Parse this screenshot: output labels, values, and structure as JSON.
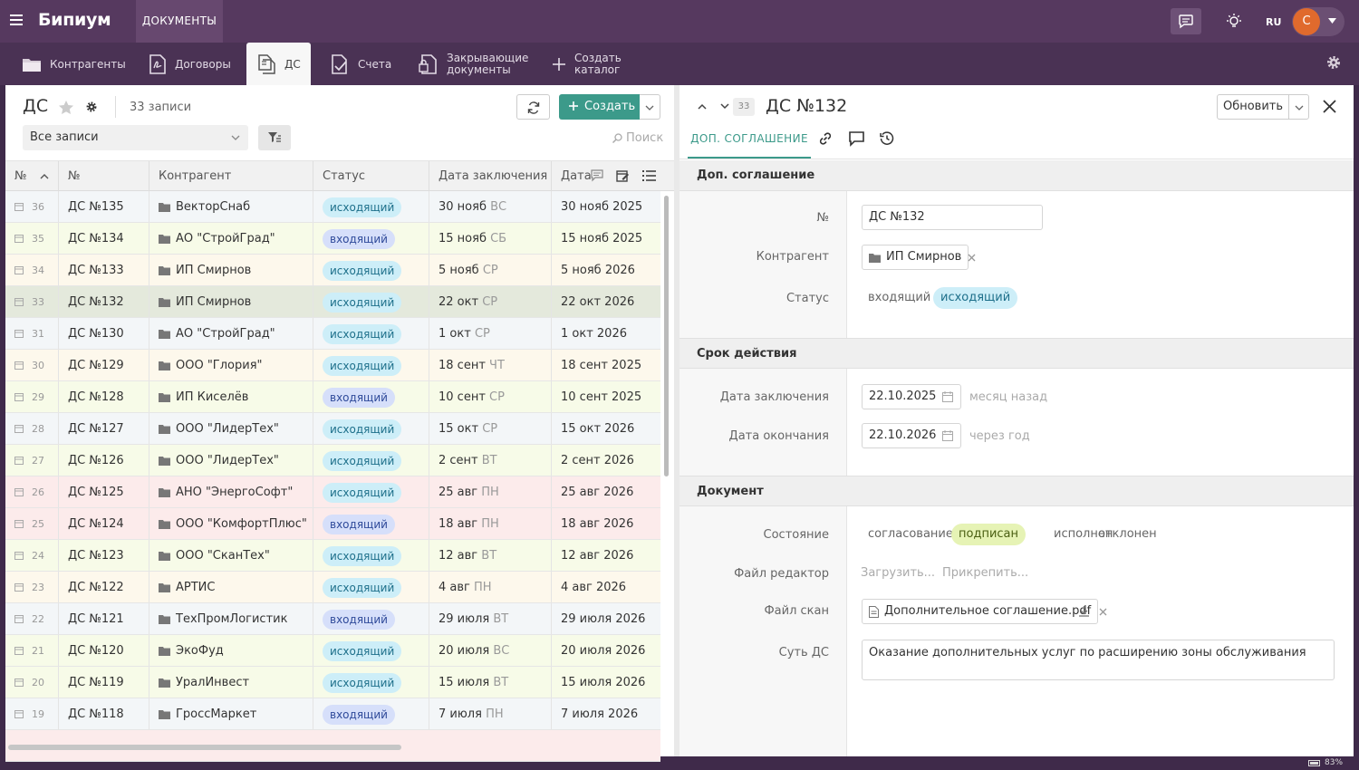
{
  "app": {
    "brand": "Бипиум",
    "top_tab": "ДОКУМЕНТЫ",
    "lang": "RU",
    "avatar_letter": "С"
  },
  "nav": {
    "items": [
      {
        "label": "Контрагенты",
        "icon": "folder-icon"
      },
      {
        "label": "Договоры",
        "icon": "contract-icon"
      },
      {
        "label": "ДС",
        "icon": "documents-icon",
        "active": true
      },
      {
        "label": "Счета",
        "icon": "invoice-check-icon"
      },
      {
        "label": "Закрывающие документы",
        "line1": "Закрывающие",
        "line2": "документы",
        "icon": "lock-document-icon"
      },
      {
        "label": "Создать каталог",
        "line1": "Создать",
        "line2": "каталог",
        "icon": "plus-icon"
      }
    ]
  },
  "list": {
    "title": "ДС",
    "count": "33 записи",
    "create_label": "Создать",
    "filter_value": "Все записи",
    "search_placeholder": "Поиск",
    "columns": [
      "№",
      "№",
      "Контрагент",
      "Статус",
      "Дата заключения",
      "Дата"
    ],
    "rows": [
      {
        "id": "36",
        "num": "ДС №135",
        "party": "ВекторСнаб",
        "status": "исходящий",
        "kind": "out",
        "date": "30 нояб",
        "dow": "ВС",
        "date2": "30 нояб 2025",
        "bg": "#f3f6f8"
      },
      {
        "id": "35",
        "num": "ДС №134",
        "party": "АО \"СтройГрад\"",
        "status": "входящий",
        "kind": "in",
        "date": "15 нояб",
        "dow": "СБ",
        "date2": "15 нояб 2025",
        "bg": "#f7fbe8"
      },
      {
        "id": "34",
        "num": "ДС №133",
        "party": "ИП Смирнов",
        "status": "исходящий",
        "kind": "out",
        "date": "5 нояб",
        "dow": "СР",
        "date2": "5 нояб 2026",
        "bg": "#fdf8ec"
      },
      {
        "id": "33",
        "num": "ДС №132",
        "party": "ИП Смирнов",
        "status": "исходящий",
        "kind": "out",
        "date": "22 окт",
        "dow": "СР",
        "date2": "22 окт 2026",
        "bg": "#e4e9dc"
      },
      {
        "id": "31",
        "num": "ДС №130",
        "party": "АО \"СтройГрад\"",
        "status": "исходящий",
        "kind": "out",
        "date": "1 окт",
        "dow": "СР",
        "date2": "1 окт 2026",
        "bg": "#f3f6f8"
      },
      {
        "id": "30",
        "num": "ДС №129",
        "party": "ООО \"Глория\"",
        "status": "исходящий",
        "kind": "out",
        "date": "18 сент",
        "dow": "ЧТ",
        "date2": "18 сент 2025",
        "bg": "#fdf8ec"
      },
      {
        "id": "29",
        "num": "ДС №128",
        "party": "ИП Киселёв",
        "status": "входящий",
        "kind": "in",
        "date": "10 сент",
        "dow": "СР",
        "date2": "10 сент 2025",
        "bg": "#f7fbe8"
      },
      {
        "id": "28",
        "num": "ДС №127",
        "party": "ООО \"ЛидерТех\"",
        "status": "исходящий",
        "kind": "out",
        "date": "15 окт",
        "dow": "СР",
        "date2": "15 окт 2026",
        "bg": "#f3f6f8"
      },
      {
        "id": "27",
        "num": "ДС №126",
        "party": "ООО \"ЛидерТех\"",
        "status": "исходящий",
        "kind": "out",
        "date": "2 сент",
        "dow": "ВТ",
        "date2": "2 сент 2026",
        "bg": "#f7fbe8"
      },
      {
        "id": "26",
        "num": "ДС №125",
        "party": "АНО \"ЭнергоСофт\"",
        "status": "исходящий",
        "kind": "out",
        "date": "25 авг",
        "dow": "ПН",
        "date2": "25 авг 2026",
        "bg": "#fcebeb"
      },
      {
        "id": "25",
        "num": "ДС №124",
        "party": "ООО \"КомфортПлюс\"",
        "status": "входящий",
        "kind": "in",
        "date": "18 авг",
        "dow": "ПН",
        "date2": "18 авг 2026",
        "bg": "#fcebeb"
      },
      {
        "id": "24",
        "num": "ДС №123",
        "party": "ООО \"СканТех\"",
        "status": "исходящий",
        "kind": "out",
        "date": "12 авг",
        "dow": "ВТ",
        "date2": "12 авг 2026",
        "bg": "#f7fbe8"
      },
      {
        "id": "23",
        "num": "ДС №122",
        "party": "АРТИС",
        "status": "исходящий",
        "kind": "out",
        "date": "4 авг",
        "dow": "ПН",
        "date2": "4 авг 2026",
        "bg": "#fdf8ec"
      },
      {
        "id": "22",
        "num": "ДС №121",
        "party": "ТехПромЛогистик",
        "status": "входящий",
        "kind": "in",
        "date": "29 июля",
        "dow": "ВТ",
        "date2": "29 июля 2026",
        "bg": "#f3f6f8"
      },
      {
        "id": "21",
        "num": "ДС №120",
        "party": "ЭкоФуд",
        "status": "исходящий",
        "kind": "out",
        "date": "20 июля",
        "dow": "ВС",
        "date2": "20 июля 2026",
        "bg": "#f7fbe8"
      },
      {
        "id": "20",
        "num": "ДС №119",
        "party": "УралИнвест",
        "status": "исходящий",
        "kind": "out",
        "date": "15 июля",
        "dow": "ВТ",
        "date2": "15 июля 2026",
        "bg": "#f7fbe8"
      },
      {
        "id": "19",
        "num": "ДС №118",
        "party": "ГроссМаркет",
        "status": "входящий",
        "kind": "in",
        "date": "7 июля",
        "dow": "ПН",
        "date2": "7 июля 2026",
        "bg": "#f3f6f8"
      }
    ]
  },
  "detail": {
    "record_number": "33",
    "title": "ДС №132",
    "update_label": "Обновить",
    "tab_label": "ДОП. СОГЛАШЕНИЕ",
    "section1": "Доп. соглашение",
    "label_num": "№",
    "num_value": "ДС №132",
    "label_party": "Контрагент",
    "party_value": "ИП Смирнов",
    "label_status": "Статус",
    "status_opt1": "входящий",
    "status_opt2": "исходящий",
    "section2": "Срок действия",
    "label_date1": "Дата заключения",
    "date1_value": "22.10.2025",
    "date1_hint": "месяц назад",
    "label_date2": "Дата окончания",
    "date2_value": "22.10.2026",
    "date2_hint": "через год",
    "section3": "Документ",
    "label_state": "Состояние",
    "state_opts": [
      "согласование",
      "подписан",
      "исполнен",
      "отклонен"
    ],
    "label_editor": "Файл редактор",
    "editor_upload": "Загрузить...",
    "editor_attach": "Прикрепить...",
    "label_scan": "Файл скан",
    "scan_file": "Дополнительное соглашение.pdf",
    "label_essence": "Суть ДС",
    "essence_value": "Оказание дополнительных услуг по расширению зоны обслуживания"
  },
  "statusbar": {
    "zoom": "83%"
  },
  "colors": {
    "topbar": "#56395f",
    "navbar": "#4a3254",
    "accent": "#3c9a8a",
    "outgoing_badge": "#cdeef8",
    "incoming_badge": "#d6dffa",
    "signed_badge": "#e6f3b5"
  }
}
